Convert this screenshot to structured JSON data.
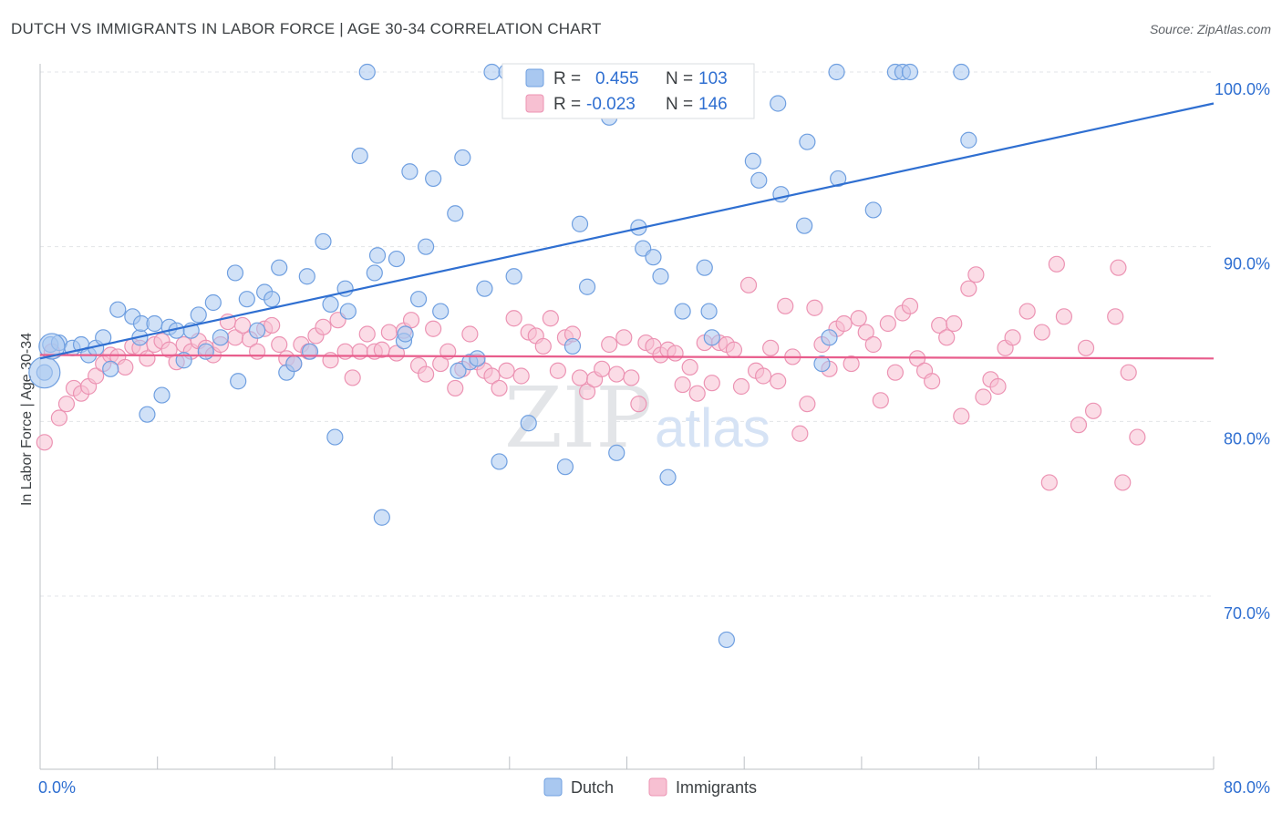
{
  "header": {
    "title": "DUTCH VS IMMIGRANTS IN LABOR FORCE | AGE 30-34 CORRELATION CHART",
    "source": "Source: ZipAtlas.com"
  },
  "watermark": {
    "zip": "ZIP",
    "atlas": "atlas"
  },
  "legend_box": {
    "r_label": "R =",
    "n_label": "N =",
    "rows": [
      {
        "r": "0.455",
        "n": "103",
        "color": "#6f9fe0"
      },
      {
        "r": "-0.023",
        "n": "146",
        "color": "#f08fb0"
      }
    ]
  },
  "bottom_legend": [
    {
      "label": "Dutch",
      "color": "#6f9fe0"
    },
    {
      "label": "Immigrants",
      "color": "#f08fb0"
    }
  ],
  "colors": {
    "dutch_fill": "#a9c8f0",
    "dutch_stroke": "#6f9fe0",
    "dutch_line": "#2f6fd1",
    "imm_fill": "#f7c0d2",
    "imm_stroke": "#ec93b3",
    "imm_line": "#e85d8c",
    "value_text": "#2f6fd1"
  },
  "chart_data": {
    "type": "scatter",
    "title": "DUTCH VS IMMIGRANTS IN LABOR FORCE | AGE 30-34 CORRELATION CHART",
    "xlabel": "",
    "ylabel": "In Labor Force | Age 30-34",
    "xlim": [
      0,
      80
    ],
    "ylim": [
      60.5,
      101.5
    ],
    "x_tick_labels": [
      "0.0%",
      "80.0%"
    ],
    "y_ticks": [
      70,
      80,
      90,
      100
    ],
    "y_tick_labels": [
      "70.0%",
      "80.0%",
      "90.0%",
      "100.0%"
    ],
    "grid": true,
    "series": [
      {
        "name": "Dutch",
        "trend": {
          "x": [
            0,
            80
          ],
          "y": [
            83.6,
            98.2
          ]
        },
        "points": [
          [
            0.7,
            84.4
          ],
          [
            0.3,
            82.8
          ],
          [
            1.3,
            84.5
          ],
          [
            2.2,
            84.2
          ],
          [
            2.8,
            84.4
          ],
          [
            3.3,
            83.8
          ],
          [
            3.8,
            84.2
          ],
          [
            4.3,
            84.8
          ],
          [
            4.8,
            83.0
          ],
          [
            5.3,
            86.4
          ],
          [
            6.3,
            86.0
          ],
          [
            6.8,
            84.8
          ],
          [
            6.9,
            85.6
          ],
          [
            7.3,
            80.4
          ],
          [
            7.8,
            85.6
          ],
          [
            8.3,
            81.5
          ],
          [
            8.8,
            85.4
          ],
          [
            9.3,
            85.2
          ],
          [
            9.8,
            83.5
          ],
          [
            10.3,
            85.2
          ],
          [
            10.8,
            86.1
          ],
          [
            11.3,
            84.0
          ],
          [
            11.8,
            86.8
          ],
          [
            12.3,
            84.8
          ],
          [
            13.3,
            88.5
          ],
          [
            13.5,
            82.3
          ],
          [
            14.1,
            87.0
          ],
          [
            14.8,
            85.2
          ],
          [
            15.3,
            87.4
          ],
          [
            15.8,
            87.0
          ],
          [
            16.3,
            88.8
          ],
          [
            16.8,
            82.8
          ],
          [
            17.3,
            83.3
          ],
          [
            18.2,
            88.3
          ],
          [
            18.4,
            84.0
          ],
          [
            19.3,
            90.3
          ],
          [
            19.8,
            86.7
          ],
          [
            20.1,
            79.1
          ],
          [
            20.8,
            87.6
          ],
          [
            21.0,
            86.3
          ],
          [
            21.8,
            95.2
          ],
          [
            22.3,
            100.0
          ],
          [
            22.8,
            88.5
          ],
          [
            23.0,
            89.5
          ],
          [
            23.3,
            74.5
          ],
          [
            24.3,
            89.3
          ],
          [
            24.8,
            84.6
          ],
          [
            24.9,
            85.0
          ],
          [
            25.2,
            94.3
          ],
          [
            25.8,
            87.0
          ],
          [
            26.3,
            90.0
          ],
          [
            26.8,
            93.9
          ],
          [
            27.3,
            86.3
          ],
          [
            28.3,
            91.9
          ],
          [
            28.5,
            82.9
          ],
          [
            28.8,
            95.1
          ],
          [
            29.3,
            83.4
          ],
          [
            29.8,
            83.6
          ],
          [
            30.3,
            87.6
          ],
          [
            30.8,
            100.0
          ],
          [
            31.3,
            77.7
          ],
          [
            31.8,
            100.0
          ],
          [
            32.3,
            88.3
          ],
          [
            33.3,
            79.9
          ],
          [
            33.8,
            100.0
          ],
          [
            34.3,
            100.0
          ],
          [
            35.3,
            100.0
          ],
          [
            35.8,
            77.4
          ],
          [
            36.3,
            84.3
          ],
          [
            36.8,
            91.3
          ],
          [
            37.3,
            87.7
          ],
          [
            38.3,
            100.0
          ],
          [
            38.8,
            97.4
          ],
          [
            39.3,
            78.2
          ],
          [
            40.3,
            100.0
          ],
          [
            40.8,
            91.1
          ],
          [
            41.1,
            89.9
          ],
          [
            41.8,
            89.4
          ],
          [
            42.3,
            88.3
          ],
          [
            42.8,
            76.8
          ],
          [
            43.3,
            100.0
          ],
          [
            43.8,
            86.3
          ],
          [
            45.3,
            88.8
          ],
          [
            45.6,
            86.3
          ],
          [
            45.8,
            84.8
          ],
          [
            46.8,
            67.5
          ],
          [
            48.0,
            100.0
          ],
          [
            48.6,
            94.9
          ],
          [
            49.0,
            93.8
          ],
          [
            50.3,
            98.2
          ],
          [
            50.5,
            93.0
          ],
          [
            52.1,
            91.2
          ],
          [
            52.3,
            96.0
          ],
          [
            53.3,
            83.3
          ],
          [
            53.8,
            84.8
          ],
          [
            54.3,
            100.0
          ],
          [
            54.4,
            93.9
          ],
          [
            56.8,
            92.1
          ],
          [
            58.3,
            100.0
          ],
          [
            58.8,
            100.0
          ],
          [
            59.3,
            100.0
          ],
          [
            62.8,
            100.0
          ],
          [
            63.3,
            96.1
          ]
        ]
      },
      {
        "name": "Immigrants",
        "trend": {
          "x": [
            0,
            80
          ],
          "y": [
            83.8,
            83.6
          ]
        },
        "points": [
          [
            0.3,
            78.8
          ],
          [
            0.8,
            84.0
          ],
          [
            1.3,
            80.2
          ],
          [
            1.8,
            81.0
          ],
          [
            2.3,
            81.9
          ],
          [
            2.8,
            81.6
          ],
          [
            3.3,
            82.0
          ],
          [
            3.8,
            82.6
          ],
          [
            4.3,
            83.3
          ],
          [
            4.8,
            83.8
          ],
          [
            5.3,
            83.7
          ],
          [
            5.8,
            83.1
          ],
          [
            6.3,
            84.3
          ],
          [
            6.8,
            84.2
          ],
          [
            7.3,
            83.6
          ],
          [
            7.8,
            84.4
          ],
          [
            8.3,
            84.6
          ],
          [
            8.8,
            84.1
          ],
          [
            9.3,
            83.4
          ],
          [
            9.8,
            84.4
          ],
          [
            10.3,
            84.0
          ],
          [
            10.8,
            84.6
          ],
          [
            11.3,
            84.2
          ],
          [
            11.8,
            83.8
          ],
          [
            12.3,
            84.4
          ],
          [
            12.8,
            85.7
          ],
          [
            13.3,
            84.8
          ],
          [
            13.8,
            85.5
          ],
          [
            14.3,
            84.7
          ],
          [
            14.8,
            84.0
          ],
          [
            15.3,
            85.3
          ],
          [
            15.8,
            85.5
          ],
          [
            16.3,
            84.4
          ],
          [
            16.8,
            83.6
          ],
          [
            17.3,
            83.3
          ],
          [
            17.8,
            84.4
          ],
          [
            18.3,
            84.0
          ],
          [
            18.8,
            84.9
          ],
          [
            19.3,
            85.4
          ],
          [
            19.8,
            83.5
          ],
          [
            20.3,
            85.8
          ],
          [
            20.8,
            84.0
          ],
          [
            21.3,
            82.5
          ],
          [
            21.8,
            84.0
          ],
          [
            22.3,
            85.0
          ],
          [
            22.8,
            84.0
          ],
          [
            23.3,
            84.1
          ],
          [
            23.8,
            85.1
          ],
          [
            24.3,
            83.9
          ],
          [
            24.8,
            85.2
          ],
          [
            25.3,
            85.8
          ],
          [
            25.8,
            83.2
          ],
          [
            26.3,
            82.7
          ],
          [
            26.8,
            85.3
          ],
          [
            27.3,
            83.3
          ],
          [
            27.8,
            84.0
          ],
          [
            28.3,
            81.9
          ],
          [
            28.8,
            83.0
          ],
          [
            29.3,
            85.0
          ],
          [
            29.8,
            83.4
          ],
          [
            30.3,
            82.9
          ],
          [
            30.8,
            82.6
          ],
          [
            31.3,
            81.9
          ],
          [
            31.8,
            82.9
          ],
          [
            32.3,
            85.9
          ],
          [
            32.8,
            82.6
          ],
          [
            33.3,
            85.1
          ],
          [
            33.8,
            84.9
          ],
          [
            34.3,
            84.3
          ],
          [
            34.8,
            85.9
          ],
          [
            35.3,
            82.9
          ],
          [
            35.8,
            84.8
          ],
          [
            36.3,
            85.0
          ],
          [
            36.8,
            82.5
          ],
          [
            37.3,
            81.7
          ],
          [
            37.8,
            82.4
          ],
          [
            38.3,
            83.0
          ],
          [
            38.8,
            84.4
          ],
          [
            39.3,
            82.7
          ],
          [
            39.8,
            84.8
          ],
          [
            40.3,
            82.5
          ],
          [
            40.8,
            81.0
          ],
          [
            41.3,
            84.5
          ],
          [
            41.8,
            84.3
          ],
          [
            42.3,
            83.8
          ],
          [
            42.8,
            84.1
          ],
          [
            43.3,
            83.9
          ],
          [
            43.8,
            82.1
          ],
          [
            44.3,
            83.1
          ],
          [
            44.8,
            81.6
          ],
          [
            45.3,
            84.5
          ],
          [
            45.8,
            82.2
          ],
          [
            46.3,
            84.5
          ],
          [
            46.8,
            84.4
          ],
          [
            47.3,
            84.1
          ],
          [
            47.8,
            82.0
          ],
          [
            48.3,
            87.8
          ],
          [
            48.8,
            82.9
          ],
          [
            49.3,
            82.6
          ],
          [
            49.8,
            84.2
          ],
          [
            50.3,
            82.3
          ],
          [
            50.8,
            86.6
          ],
          [
            51.3,
            83.7
          ],
          [
            51.8,
            79.3
          ],
          [
            52.3,
            81.0
          ],
          [
            52.8,
            86.5
          ],
          [
            53.3,
            84.4
          ],
          [
            53.8,
            83.0
          ],
          [
            54.3,
            85.3
          ],
          [
            54.8,
            85.6
          ],
          [
            55.3,
            83.3
          ],
          [
            55.8,
            85.9
          ],
          [
            56.3,
            85.1
          ],
          [
            56.8,
            84.4
          ],
          [
            57.3,
            81.2
          ],
          [
            57.8,
            85.6
          ],
          [
            58.3,
            82.8
          ],
          [
            58.8,
            86.2
          ],
          [
            59.3,
            86.6
          ],
          [
            59.8,
            83.6
          ],
          [
            60.3,
            82.9
          ],
          [
            60.8,
            82.3
          ],
          [
            61.3,
            85.5
          ],
          [
            61.8,
            84.8
          ],
          [
            62.3,
            85.6
          ],
          [
            62.8,
            80.3
          ],
          [
            63.3,
            87.6
          ],
          [
            63.8,
            88.4
          ],
          [
            64.3,
            81.4
          ],
          [
            64.8,
            82.4
          ],
          [
            65.3,
            82.0
          ],
          [
            65.8,
            84.2
          ],
          [
            66.3,
            84.8
          ],
          [
            67.3,
            86.3
          ],
          [
            68.3,
            85.1
          ],
          [
            68.8,
            76.5
          ],
          [
            69.3,
            89.0
          ],
          [
            69.8,
            86.0
          ],
          [
            70.8,
            79.8
          ],
          [
            71.3,
            84.2
          ],
          [
            71.8,
            80.6
          ],
          [
            73.3,
            86.0
          ],
          [
            73.8,
            76.5
          ],
          [
            74.2,
            82.8
          ],
          [
            74.8,
            79.1
          ],
          [
            73.5,
            88.8
          ]
        ]
      }
    ]
  }
}
